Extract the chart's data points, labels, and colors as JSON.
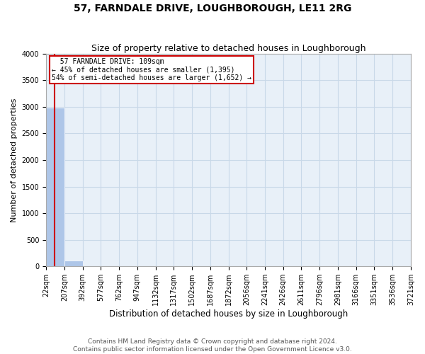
{
  "title": "57, FARNDALE DRIVE, LOUGHBOROUGH, LE11 2RG",
  "subtitle": "Size of property relative to detached houses in Loughborough",
  "xlabel": "Distribution of detached houses by size in Loughborough",
  "ylabel": "Number of detached properties",
  "footer_line1": "Contains HM Land Registry data © Crown copyright and database right 2024.",
  "footer_line2": "Contains public sector information licensed under the Open Government Licence v3.0.",
  "annotation_title": "57 FARNDALE DRIVE: 109sqm",
  "annotation_line1": "← 45% of detached houses are smaller (1,395)",
  "annotation_line2": "54% of semi-detached houses are larger (1,652) →",
  "property_size_sqm": 109,
  "bin_edges": [
    22,
    207,
    392,
    577,
    762,
    947,
    1132,
    1317,
    1502,
    1687,
    1872,
    2056,
    2241,
    2426,
    2611,
    2796,
    2981,
    3166,
    3351,
    3536,
    3721
  ],
  "bar_heights": [
    2980,
    110,
    5,
    2,
    1,
    1,
    0,
    0,
    0,
    0,
    0,
    0,
    0,
    0,
    0,
    0,
    0,
    0,
    0,
    0
  ],
  "bar_color": "#aec6e8",
  "property_line_color": "#cc0000",
  "annotation_box_color": "#cc0000",
  "grid_color": "#c8d8e8",
  "background_color": "#e8f0f8",
  "ylim": [
    0,
    4000
  ],
  "yticks": [
    0,
    500,
    1000,
    1500,
    2000,
    2500,
    3000,
    3500,
    4000
  ],
  "title_fontsize": 10,
  "subtitle_fontsize": 9,
  "xlabel_fontsize": 8.5,
  "ylabel_fontsize": 8,
  "tick_fontsize": 7,
  "annotation_fontsize": 7,
  "footer_fontsize": 6.5
}
